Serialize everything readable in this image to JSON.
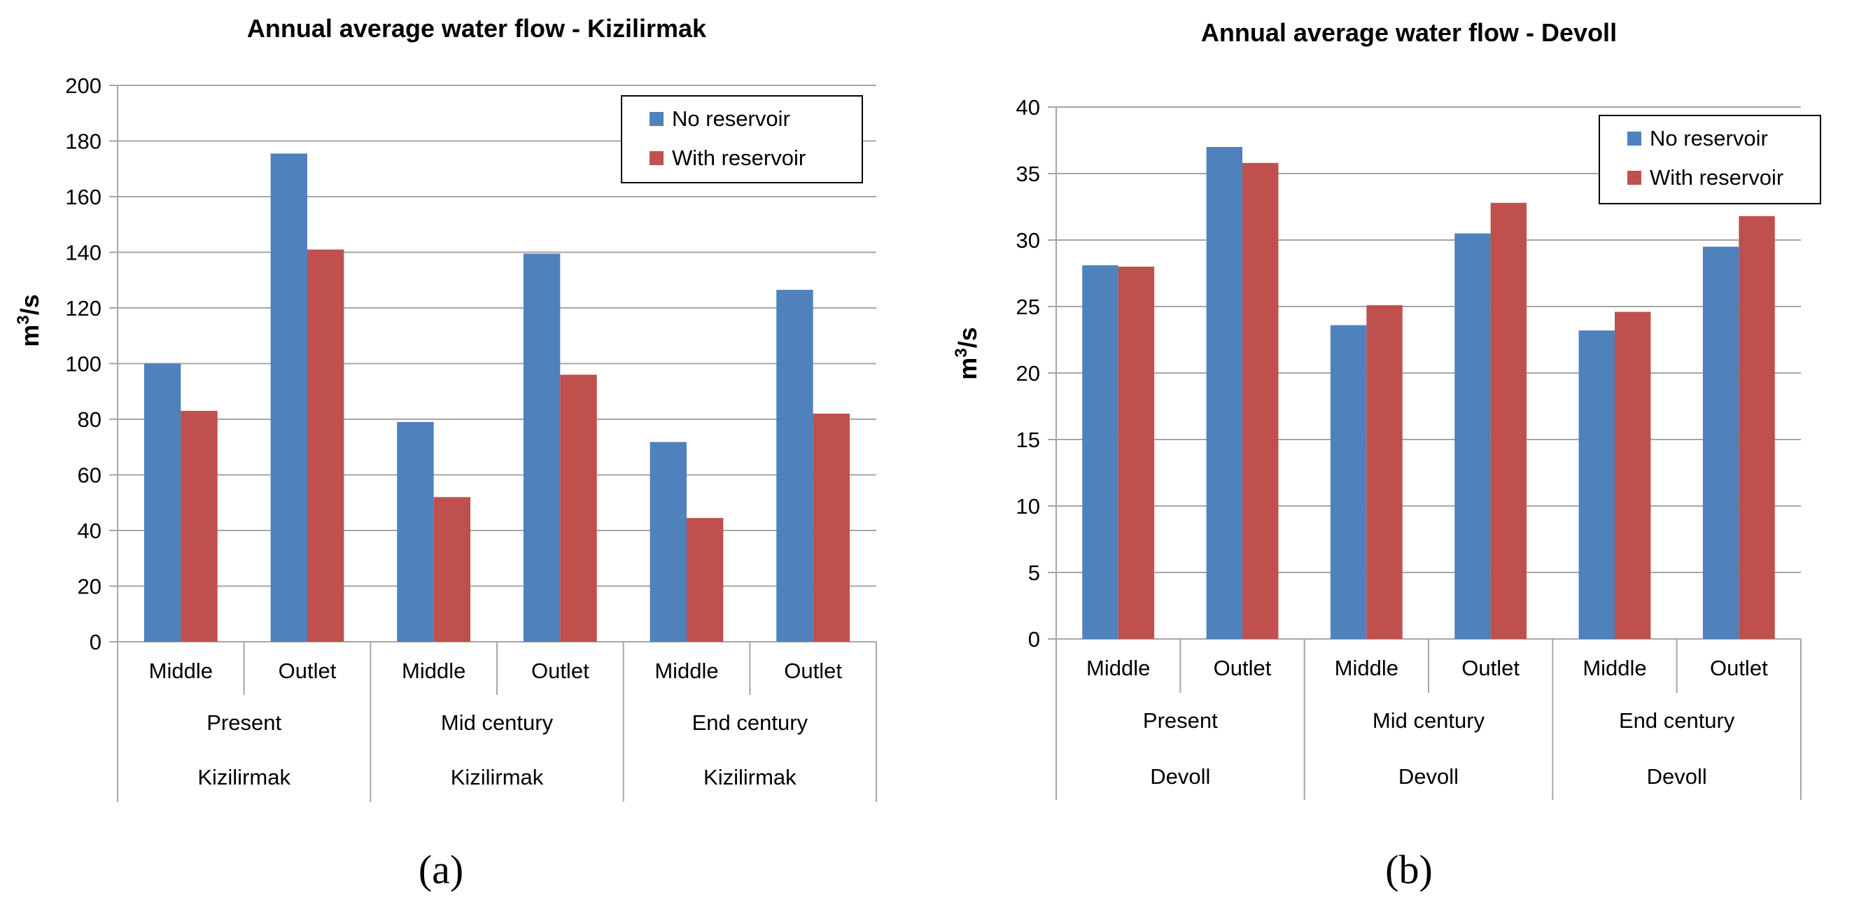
{
  "chart_data": [
    {
      "type": "bar",
      "panel_label": "(a)",
      "title": "Annual average water flow - Kizilirmak",
      "ylabel": "m³/s",
      "ylim": [
        0,
        200
      ],
      "yticks": [
        0,
        20,
        40,
        60,
        80,
        100,
        120,
        140,
        160,
        180,
        200
      ],
      "grid": true,
      "legend_position": "top-right",
      "categories": [
        {
          "level1": "Middle",
          "level2": "Present",
          "level3": "Kizilirmak"
        },
        {
          "level1": "Outlet",
          "level2": "Present",
          "level3": "Kizilirmak"
        },
        {
          "level1": "Middle",
          "level2": "Mid century",
          "level3": "Kizilirmak"
        },
        {
          "level1": "Outlet",
          "level2": "Mid century",
          "level3": "Kizilirmak"
        },
        {
          "level1": "Middle",
          "level2": "End century",
          "level3": "Kizilirmak"
        },
        {
          "level1": "Outlet",
          "level2": "End century",
          "level3": "Kizilirmak"
        }
      ],
      "groups": [
        {
          "label": "Present",
          "parent": "Kizilirmak"
        },
        {
          "label": "Mid century",
          "parent": "Kizilirmak"
        },
        {
          "label": "End century",
          "parent": "Kizilirmak"
        }
      ],
      "series": [
        {
          "name": "No reservoir",
          "color": "#4f81bd",
          "values": [
            100,
            175.5,
            79,
            139.5,
            71.8,
            126.5
          ]
        },
        {
          "name": "With reservoir",
          "color": "#c0504d",
          "values": [
            83,
            141,
            52,
            96,
            44.5,
            82
          ]
        }
      ]
    },
    {
      "type": "bar",
      "panel_label": "(b)",
      "title": "Annual average water flow - Devoll",
      "ylabel": "m³/s",
      "ylim": [
        0,
        40
      ],
      "yticks": [
        0,
        5,
        10,
        15,
        20,
        25,
        30,
        35,
        40
      ],
      "grid": true,
      "legend_position": "top-right",
      "categories": [
        {
          "level1": "Middle",
          "level2": "Present",
          "level3": "Devoll"
        },
        {
          "level1": "Outlet",
          "level2": "Present",
          "level3": "Devoll"
        },
        {
          "level1": "Middle",
          "level2": "Mid century",
          "level3": "Devoll"
        },
        {
          "level1": "Outlet",
          "level2": "Mid century",
          "level3": "Devoll"
        },
        {
          "level1": "Middle",
          "level2": "End century",
          "level3": "Devoll"
        },
        {
          "level1": "Outlet",
          "level2": "End century",
          "level3": "Devoll"
        }
      ],
      "groups": [
        {
          "label": "Present",
          "parent": "Devoll"
        },
        {
          "label": "Mid century",
          "parent": "Devoll"
        },
        {
          "label": "End century",
          "parent": "Devoll"
        }
      ],
      "series": [
        {
          "name": "No reservoir",
          "color": "#4f81bd",
          "values": [
            28.1,
            37,
            23.6,
            30.5,
            23.2,
            29.5
          ]
        },
        {
          "name": "With reservoir",
          "color": "#c0504d",
          "values": [
            28,
            35.8,
            25.1,
            32.8,
            24.6,
            31.8
          ]
        }
      ]
    }
  ]
}
